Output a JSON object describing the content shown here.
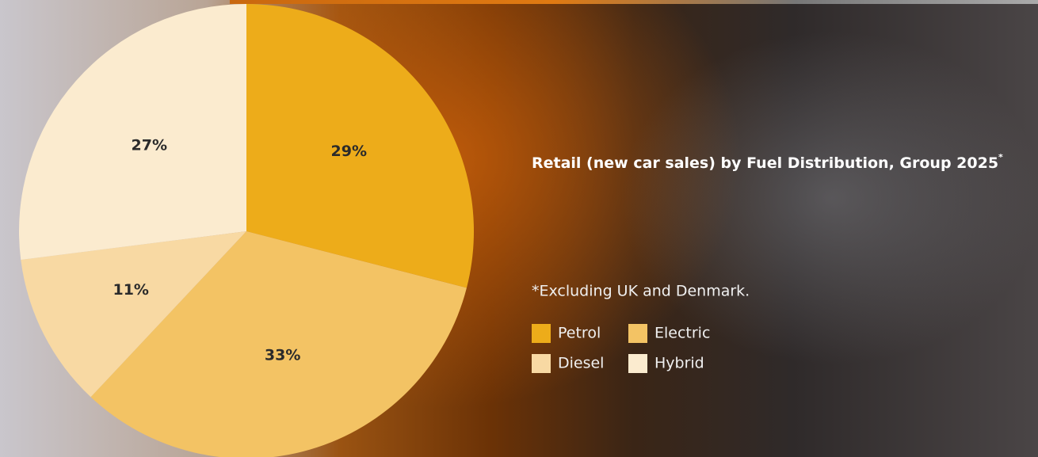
{
  "chart_data": {
    "type": "pie",
    "title": "Retail (new car sales) by Fuel Distribution, Group 2025",
    "title_mark": "*",
    "note": "*Excluding UK and Denmark.",
    "categories": [
      "Petrol",
      "Electric",
      "Diesel",
      "Hybrid"
    ],
    "values": [
      29,
      33,
      11,
      27
    ],
    "value_labels": [
      "29%",
      "33%",
      "11%",
      "27%"
    ],
    "colors": [
      "#edac1a",
      "#f3c364",
      "#f8d9a3",
      "#fbebcf"
    ],
    "legend": "right"
  }
}
